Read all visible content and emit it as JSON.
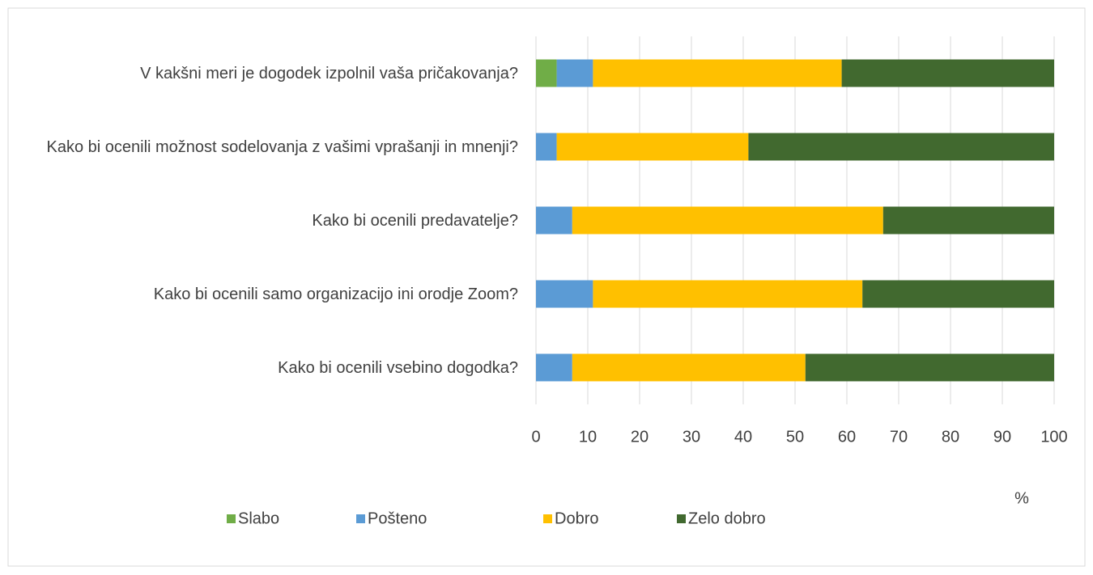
{
  "chart_data": {
    "type": "stacked_barh",
    "categories": [
      "V kakšni meri je dogodek izpolnil vaša pričakovanja?",
      "Kako bi ocenili možnost sodelovanja z vašimi vprašanji in mnenji?",
      "Kako bi ocenili predavatelje?",
      "Kako bi ocenili samo organizacijo ini orodje Zoom?",
      "Kako bi ocenili vsebino dogodka?"
    ],
    "series": [
      {
        "name": "Slabo",
        "color": "#70ad47",
        "values": [
          4,
          0,
          0,
          0,
          0
        ]
      },
      {
        "name": "Pošteno",
        "color": "#5b9bd5",
        "values": [
          7,
          4,
          7,
          11,
          7
        ]
      },
      {
        "name": "Dobro",
        "color": "#ffc000",
        "values": [
          48,
          37,
          60,
          52,
          45
        ]
      },
      {
        "name": "Zelo dobro",
        "color": "#41692f",
        "values": [
          41,
          59,
          33,
          37,
          48
        ]
      }
    ],
    "xlabel": "%",
    "xlim": [
      0,
      100
    ],
    "xticks": [
      0,
      10,
      20,
      30,
      40,
      50,
      60,
      70,
      80,
      90,
      100
    ],
    "grid": true,
    "legend": "bottom"
  }
}
